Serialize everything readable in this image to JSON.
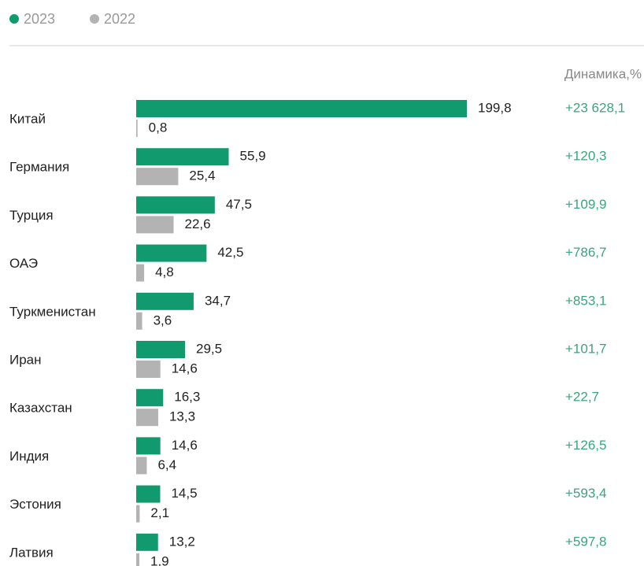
{
  "chart_data": {
    "type": "hbar",
    "categories": [
      "Китай",
      "Германия",
      "Турция",
      "ОАЭ",
      "Туркменистан",
      "Иран",
      "Казахстан",
      "Индия",
      "Эстония",
      "Латвия"
    ],
    "series": [
      {
        "name": "2023",
        "color": "#109a6d",
        "values": [
          199.8,
          55.9,
          47.5,
          42.5,
          34.7,
          29.5,
          16.3,
          14.6,
          14.5,
          13.2
        ],
        "value_labels": [
          "199,8",
          "55,9",
          "47,5",
          "42,5",
          "34,7",
          "29,5",
          "16,3",
          "14,6",
          "14,5",
          "13,2"
        ]
      },
      {
        "name": "2022",
        "color": "#b3b3b3",
        "values": [
          0.8,
          25.4,
          22.6,
          4.8,
          3.6,
          14.6,
          13.3,
          6.4,
          2.1,
          1.9
        ],
        "value_labels": [
          "0,8",
          "25,4",
          "22,6",
          "4,8",
          "3,6",
          "14,6",
          "13,3",
          "6,4",
          "2,1",
          "1,9"
        ]
      }
    ],
    "dynamics": {
      "title": "Динамика,%",
      "color": "#3aa57c",
      "values": [
        23628.1,
        120.3,
        109.9,
        786.7,
        853.1,
        101.7,
        22.7,
        126.5,
        593.4,
        597.8
      ],
      "value_labels": [
        "+23 628,1",
        "+120,3",
        "+109,9",
        "+786,7",
        "+853,1",
        "+101,7",
        "+22,7",
        "+126,5",
        "+593,4",
        "+597,8"
      ]
    }
  }
}
